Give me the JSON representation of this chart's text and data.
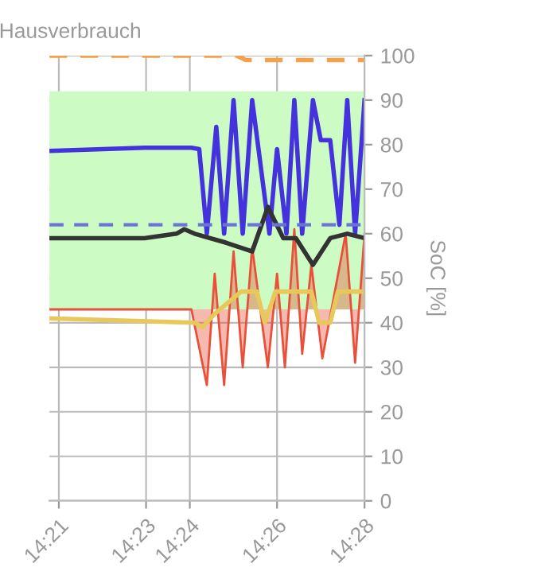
{
  "chart_data": {
    "type": "line",
    "title": "Hausverbrauch",
    "ylabel": "SoC [%]",
    "xlim": [
      14.3464,
      14.4667
    ],
    "xticks": [
      {
        "value": 14.35,
        "label": "14:21"
      },
      {
        "value": 14.3833,
        "label": "14:23"
      },
      {
        "value": 14.4,
        "label": "14:24"
      },
      {
        "value": 14.4333,
        "label": "14:26"
      },
      {
        "value": 14.4667,
        "label": "14:28"
      }
    ],
    "ylim": [
      0,
      100
    ],
    "yticks": [
      0,
      10,
      20,
      30,
      40,
      50,
      60,
      70,
      80,
      90,
      100
    ],
    "grid": true,
    "bands": [
      {
        "axis": "y",
        "from": 43,
        "to": 92,
        "color": "#ccfcc4"
      }
    ],
    "ref_lines": [
      {
        "axis": "y",
        "value": 62,
        "color": "#6a74d8",
        "line_style": "dashed"
      }
    ],
    "series": [
      {
        "color": "#f5a04a",
        "line_style": "dashed",
        "x": [
          14.3464,
          14.4179,
          14.4214,
          14.4667
        ],
        "values": [
          100,
          100,
          99,
          99
        ]
      },
      {
        "type": "area",
        "color": "#e8503a",
        "x": [
          14.3464,
          14.4006,
          14.4065,
          14.4095,
          14.4131,
          14.4167,
          14.4202,
          14.4238,
          14.4298,
          14.4333,
          14.4363,
          14.4399,
          14.4429,
          14.4464,
          14.4506,
          14.4595,
          14.4631,
          14.4667
        ],
        "values": [
          43,
          43,
          26,
          51,
          26,
          56,
          30,
          57,
          30,
          51,
          30,
          61,
          33,
          53,
          32,
          60,
          31,
          60
        ]
      },
      {
        "color": "#e8c85a",
        "x": [
          14.3464,
          14.4018,
          14.4048,
          14.4095,
          14.4196,
          14.4256,
          14.4286,
          14.4327,
          14.4464,
          14.4494,
          14.4536,
          14.4565,
          14.4667
        ],
        "values": [
          41,
          40,
          39,
          42,
          47,
          47,
          40,
          47,
          47,
          40,
          40,
          47,
          47
        ]
      },
      {
        "color": "#4433dd",
        "x": [
          14.3464,
          14.3827,
          14.4006,
          14.4036,
          14.4065,
          14.4101,
          14.4131,
          14.4167,
          14.4202,
          14.4238,
          14.4304,
          14.4333,
          14.4369,
          14.4399,
          14.4429,
          14.447,
          14.45,
          14.4536,
          14.4571,
          14.4601,
          14.4631,
          14.4667
        ],
        "values": [
          78.6,
          79.3,
          79.3,
          79,
          60,
          84,
          60,
          90,
          60,
          90,
          60,
          79,
          60,
          90,
          60,
          90,
          81,
          81,
          62,
          90,
          60,
          90
        ]
      },
      {
        "color": "#333333",
        "x": [
          14.3464,
          14.3827,
          14.3949,
          14.3979,
          14.4018,
          14.4137,
          14.4238,
          14.4298,
          14.4357,
          14.4405,
          14.447,
          14.4536,
          14.4601,
          14.4667
        ],
        "values": [
          59,
          59,
          60,
          61,
          60,
          58,
          56,
          66,
          59,
          59,
          53,
          59,
          60,
          59
        ]
      }
    ]
  }
}
